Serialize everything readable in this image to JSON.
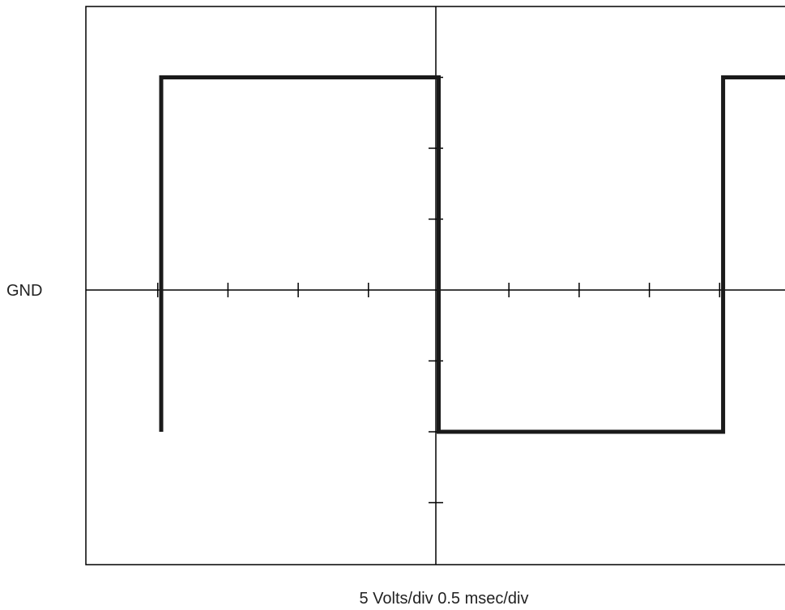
{
  "labels": {
    "ground": "GND",
    "scale": "5 Volts/div  0.5 msec/div"
  },
  "colors": {
    "trace": "#1a1a1a",
    "graticule": "#000000",
    "background": "#ffffff"
  },
  "chart_data": {
    "type": "line",
    "x_unit": "divisions",
    "y_unit": "divisions",
    "xlim": [
      0,
      10
    ],
    "ylim": [
      -4,
      4
    ],
    "ground_level": 0,
    "series": [
      {
        "x": [
          1.05,
          1.05,
          5.0,
          5.0,
          9.05,
          9.05,
          10.0
        ],
        "y": [
          -2.0,
          3.0,
          3.0,
          -2.0,
          -2.0,
          3.0,
          3.0
        ]
      }
    ]
  }
}
